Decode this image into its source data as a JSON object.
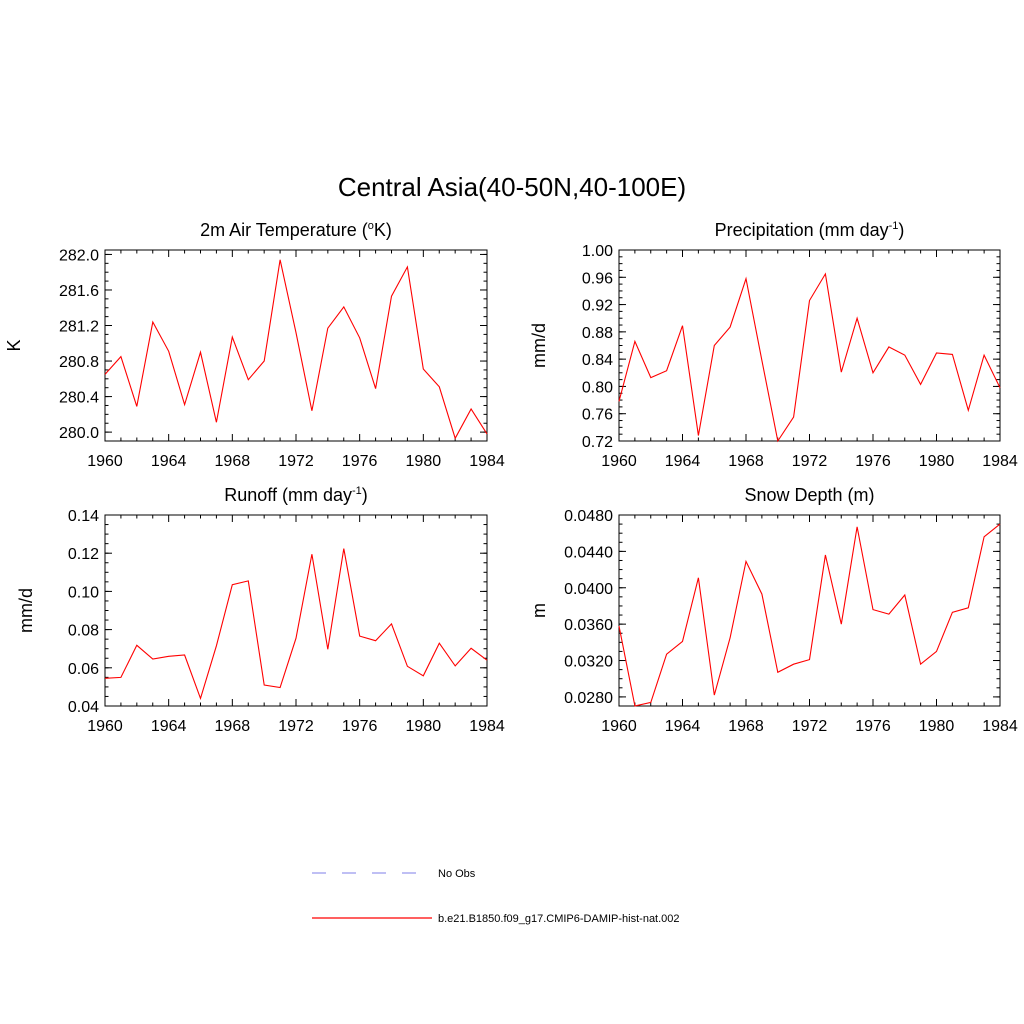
{
  "figure": {
    "title": "Central Asia(40-50N,40-100E)"
  },
  "legend": {
    "placement": "bottom-center",
    "entries": [
      {
        "label": "No Obs",
        "color": "#9999ee",
        "dash": true
      },
      {
        "label": "b.e21.B1850.f09_g17.CMIP6-DAMIP-hist-nat.002",
        "color": "#ff0000",
        "dash": false
      }
    ]
  },
  "chart_data": [
    {
      "type": "line",
      "title": "2m Air Temperature (",
      "title_sup": "o",
      "title_tail": "K)",
      "ylabel": "K",
      "xlim": [
        1960,
        1984
      ],
      "ylim": [
        279.9,
        282.05
      ],
      "xticks": [
        "1960",
        "1964",
        "1968",
        "1972",
        "1976",
        "1980",
        "1984"
      ],
      "yticks": [
        "280.0",
        "280.4",
        "280.8",
        "281.2",
        "281.6",
        "282.0"
      ],
      "series": [
        {
          "color": "#ff0000",
          "x": [
            1960,
            1961,
            1962,
            1963,
            1964,
            1965,
            1966,
            1967,
            1968,
            1969,
            1970,
            1971,
            1972,
            1973,
            1974,
            1975,
            1976,
            1977,
            1978,
            1979,
            1980,
            1981,
            1982,
            1983,
            1984
          ],
          "y": [
            280.65,
            280.85,
            280.29,
            281.24,
            280.91,
            280.31,
            280.9,
            280.11,
            281.07,
            280.59,
            280.8,
            281.94,
            281.12,
            280.24,
            281.17,
            281.41,
            281.06,
            280.49,
            281.53,
            281.86,
            280.71,
            280.51,
            279.93,
            280.26,
            279.98
          ]
        }
      ]
    },
    {
      "type": "line",
      "title": "Precipitation (mm day",
      "title_sup": "-1",
      "title_tail": ")",
      "ylabel": "mm/d",
      "xlim": [
        1960,
        1984
      ],
      "ylim": [
        0.72,
        1.0
      ],
      "xticks": [
        "1960",
        "1964",
        "1968",
        "1972",
        "1976",
        "1980",
        "1984"
      ],
      "yticks": [
        "0.72",
        "0.76",
        "0.80",
        "0.84",
        "0.88",
        "0.92",
        "0.96",
        "1.00"
      ],
      "series": [
        {
          "color": "#ff0000",
          "x": [
            1960,
            1961,
            1962,
            1963,
            1964,
            1965,
            1966,
            1967,
            1968,
            1969,
            1970,
            1971,
            1972,
            1973,
            1974,
            1975,
            1976,
            1977,
            1978,
            1979,
            1980,
            1981,
            1982,
            1983,
            1984
          ],
          "y": [
            0.778,
            0.866,
            0.813,
            0.823,
            0.889,
            0.728,
            0.86,
            0.887,
            0.958,
            0.838,
            0.72,
            0.755,
            0.926,
            0.965,
            0.821,
            0.9,
            0.82,
            0.858,
            0.846,
            0.803,
            0.849,
            0.847,
            0.765,
            0.846,
            0.798
          ]
        }
      ]
    },
    {
      "type": "line",
      "title": "Runoff (mm day",
      "title_sup": "-1",
      "title_tail": ")",
      "ylabel": "mm/d",
      "xlim": [
        1960,
        1984
      ],
      "ylim": [
        0.04,
        0.14
      ],
      "xticks": [
        "1960",
        "1964",
        "1968",
        "1972",
        "1976",
        "1980",
        "1984"
      ],
      "yticks": [
        "0.04",
        "0.06",
        "0.08",
        "0.10",
        "0.12",
        "0.14"
      ],
      "series": [
        {
          "color": "#ff0000",
          "x": [
            1960,
            1961,
            1962,
            1963,
            1964,
            1965,
            1966,
            1967,
            1968,
            1969,
            1970,
            1971,
            1972,
            1973,
            1974,
            1975,
            1976,
            1977,
            1978,
            1979,
            1980,
            1981,
            1982,
            1983,
            1984
          ],
          "y": [
            0.0545,
            0.055,
            0.0718,
            0.0646,
            0.066,
            0.0667,
            0.044,
            0.0715,
            0.1035,
            0.1055,
            0.051,
            0.0497,
            0.0755,
            0.1195,
            0.0697,
            0.1224,
            0.0766,
            0.0742,
            0.083,
            0.0608,
            0.0558,
            0.0729,
            0.061,
            0.0702,
            0.064
          ]
        }
      ]
    },
    {
      "type": "line",
      "title": "Snow Depth (m)",
      "title_sup": "",
      "title_tail": "",
      "ylabel": "m",
      "xlim": [
        1960,
        1984
      ],
      "ylim": [
        0.027,
        0.048
      ],
      "xticks": [
        "1960",
        "1964",
        "1968",
        "1972",
        "1976",
        "1980",
        "1984"
      ],
      "yticks": [
        "0.0280",
        "0.0320",
        "0.0360",
        "0.0400",
        "0.0440",
        "0.0480"
      ],
      "series": [
        {
          "color": "#ff0000",
          "x": [
            1960,
            1961,
            1962,
            1963,
            1964,
            1965,
            1966,
            1967,
            1968,
            1969,
            1970,
            1971,
            1972,
            1973,
            1974,
            1975,
            1976,
            1977,
            1978,
            1979,
            1980,
            1981,
            1982,
            1983,
            1984
          ],
          "y": [
            0.0358,
            0.027,
            0.0274,
            0.0327,
            0.0341,
            0.0411,
            0.0282,
            0.0345,
            0.0429,
            0.0393,
            0.0307,
            0.0316,
            0.0321,
            0.0436,
            0.036,
            0.0467,
            0.0376,
            0.0371,
            0.0392,
            0.0316,
            0.033,
            0.0373,
            0.0378,
            0.0456,
            0.047
          ]
        }
      ]
    }
  ]
}
